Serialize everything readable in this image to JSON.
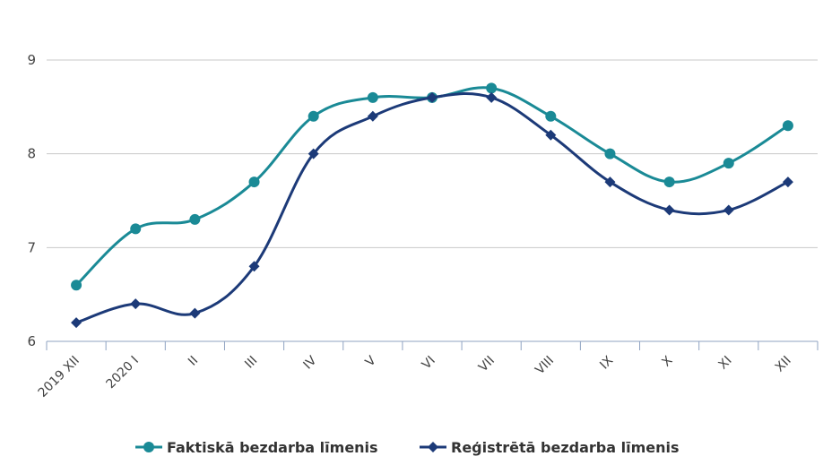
{
  "chart_data": {
    "type": "line",
    "categories": [
      "2019 XII",
      "2020 I",
      "II",
      "III",
      "IV",
      "V",
      "VI",
      "VII",
      "VIII",
      "IX",
      "X",
      "XI",
      "XII"
    ],
    "ylim": [
      6,
      9
    ],
    "yticks": [
      6,
      7,
      8,
      9
    ],
    "grid": true,
    "legend_position": "bottom",
    "series": [
      {
        "name": "Faktiskā bezdarba līmenis",
        "color": "#1a8a96",
        "marker": "circle",
        "values": [
          6.6,
          7.2,
          7.3,
          7.7,
          8.4,
          8.6,
          8.6,
          8.7,
          8.4,
          8.0,
          7.7,
          7.9,
          8.3
        ]
      },
      {
        "name": "Reģistrētā bezdarba līmenis",
        "color": "#1c3a78",
        "marker": "diamond",
        "values": [
          6.2,
          6.4,
          6.3,
          6.8,
          8.0,
          8.4,
          8.6,
          8.6,
          8.2,
          7.7,
          7.4,
          7.4,
          7.7
        ]
      }
    ]
  }
}
